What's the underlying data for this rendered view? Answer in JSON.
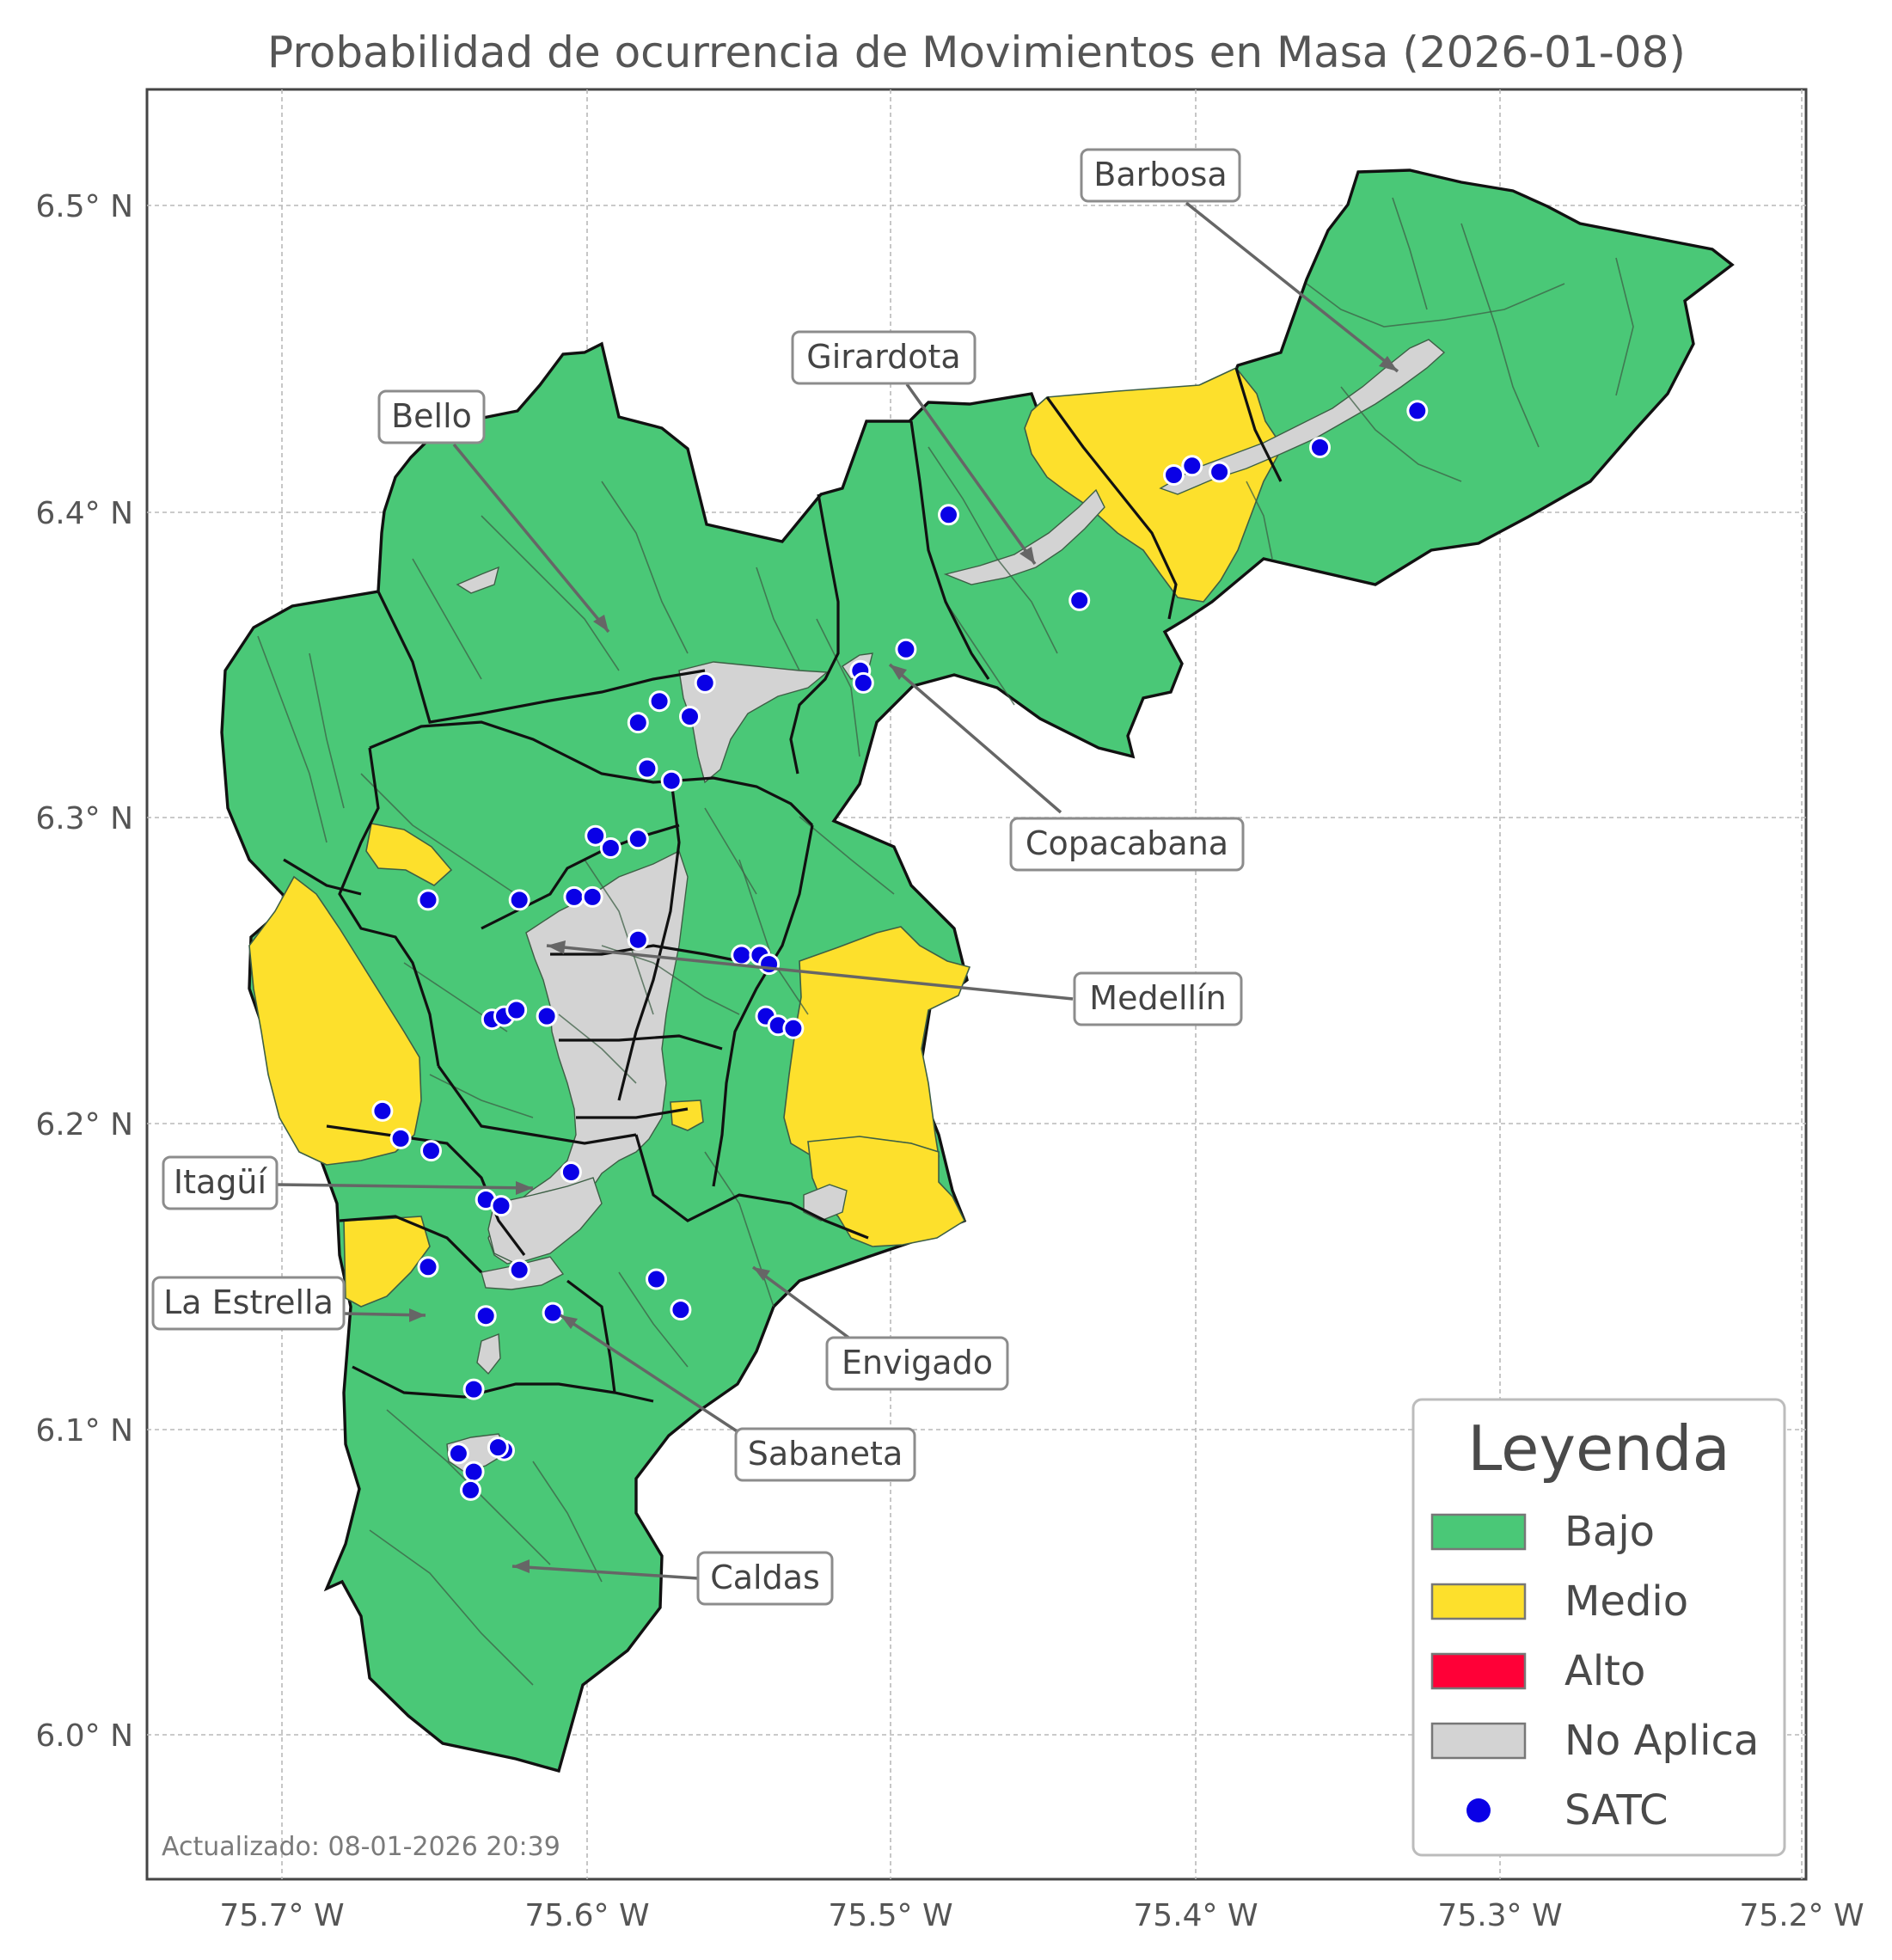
{
  "map": {
    "title": "Probabilidad de ocurrencia de Movimientos en Masa (2026-01-08)",
    "footer": "Actualizado: 08-01-2026 20:39",
    "x_ticks": [
      "75.7° W",
      "75.6° W",
      "75.5° W",
      "75.4° W",
      "75.3° W",
      "75.2° W"
    ],
    "y_ticks": [
      "6.5° N",
      "6.4° N",
      "6.3° N",
      "6.2° N",
      "6.1° N",
      "6.0° N"
    ],
    "colors": {
      "bajo": "#4ac877",
      "medio": "#fde02c",
      "alto": "#ff0037",
      "no_aplica": "#d3d3d3",
      "satc": "#0a00e6"
    },
    "municipalities": [
      {
        "name": "Barbosa",
        "label": "Barbosa"
      },
      {
        "name": "Girardota",
        "label": "Girardota"
      },
      {
        "name": "Bello",
        "label": "Bello"
      },
      {
        "name": "Copacabana",
        "label": "Copacabana"
      },
      {
        "name": "Medellin",
        "label": "Medellín"
      },
      {
        "name": "Itagui",
        "label": "Itagüí"
      },
      {
        "name": "La Estrella",
        "label": "La Estrella"
      },
      {
        "name": "Envigado",
        "label": "Envigado"
      },
      {
        "name": "Sabaneta",
        "label": "Sabaneta"
      },
      {
        "name": "Caldas",
        "label": "Caldas"
      }
    ],
    "satc_stations": [
      {
        "lon": -75.327,
        "lat": 6.433
      },
      {
        "lon": -75.359,
        "lat": 6.421
      },
      {
        "lon": -75.392,
        "lat": 6.413
      },
      {
        "lon": -75.401,
        "lat": 6.415
      },
      {
        "lon": -75.407,
        "lat": 6.412
      },
      {
        "lon": -75.481,
        "lat": 6.399
      },
      {
        "lon": -75.438,
        "lat": 6.371
      },
      {
        "lon": -75.495,
        "lat": 6.355
      },
      {
        "lon": -75.51,
        "lat": 6.348
      },
      {
        "lon": -75.509,
        "lat": 6.344
      },
      {
        "lon": -75.561,
        "lat": 6.344
      },
      {
        "lon": -75.576,
        "lat": 6.338
      },
      {
        "lon": -75.566,
        "lat": 6.333
      },
      {
        "lon": -75.583,
        "lat": 6.331
      },
      {
        "lon": -75.58,
        "lat": 6.316
      },
      {
        "lon": -75.572,
        "lat": 6.312
      },
      {
        "lon": -75.597,
        "lat": 6.294
      },
      {
        "lon": -75.583,
        "lat": 6.293
      },
      {
        "lon": -75.592,
        "lat": 6.29
      },
      {
        "lon": -75.652,
        "lat": 6.273
      },
      {
        "lon": -75.622,
        "lat": 6.273
      },
      {
        "lon": -75.604,
        "lat": 6.274
      },
      {
        "lon": -75.598,
        "lat": 6.274
      },
      {
        "lon": -75.583,
        "lat": 6.26
      },
      {
        "lon": -75.549,
        "lat": 6.255
      },
      {
        "lon": -75.543,
        "lat": 6.255
      },
      {
        "lon": -75.54,
        "lat": 6.252
      },
      {
        "lon": -75.541,
        "lat": 6.235
      },
      {
        "lon": -75.537,
        "lat": 6.232
      },
      {
        "lon": -75.532,
        "lat": 6.231
      },
      {
        "lon": -75.631,
        "lat": 6.234
      },
      {
        "lon": -75.627,
        "lat": 6.235
      },
      {
        "lon": -75.623,
        "lat": 6.237
      },
      {
        "lon": -75.613,
        "lat": 6.235
      },
      {
        "lon": -75.667,
        "lat": 6.204
      },
      {
        "lon": -75.661,
        "lat": 6.195
      },
      {
        "lon": -75.651,
        "lat": 6.191
      },
      {
        "lon": -75.605,
        "lat": 6.184
      },
      {
        "lon": -75.633,
        "lat": 6.175
      },
      {
        "lon": -75.628,
        "lat": 6.173
      },
      {
        "lon": -75.652,
        "lat": 6.153
      },
      {
        "lon": -75.622,
        "lat": 6.152
      },
      {
        "lon": -75.577,
        "lat": 6.149
      },
      {
        "lon": -75.569,
        "lat": 6.139
      },
      {
        "lon": -75.611,
        "lat": 6.138
      },
      {
        "lon": -75.633,
        "lat": 6.137
      },
      {
        "lon": -75.637,
        "lat": 6.113
      },
      {
        "lon": -75.627,
        "lat": 6.093
      },
      {
        "lon": -75.629,
        "lat": 6.094
      },
      {
        "lon": -75.642,
        "lat": 6.092
      },
      {
        "lon": -75.637,
        "lat": 6.086
      },
      {
        "lon": -75.638,
        "lat": 6.08
      }
    ]
  },
  "legend": {
    "title": "Leyenda",
    "items": [
      {
        "label": "Bajo",
        "type": "patch",
        "color_key": "bajo"
      },
      {
        "label": "Medio",
        "type": "patch",
        "color_key": "medio"
      },
      {
        "label": "Alto",
        "type": "patch",
        "color_key": "alto"
      },
      {
        "label": "No Aplica",
        "type": "patch",
        "color_key": "no_aplica"
      },
      {
        "label": "SATC",
        "type": "marker",
        "color_key": "satc"
      }
    ]
  }
}
